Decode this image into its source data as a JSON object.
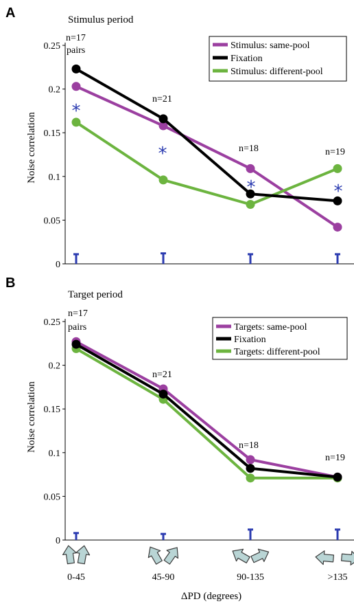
{
  "xlabel": "ΔPD (degrees)",
  "categories": [
    "0-45",
    "45-90",
    "90-135",
    ">135"
  ],
  "colors": {
    "same_pool": "#9b3fa0",
    "fixation": "#000000",
    "different_pool": "#6cb43f",
    "error_bar": "#2b3bb0",
    "arrow_fill": "#b9d5d5",
    "arrow_stroke": "#3a3a3a"
  },
  "panels": [
    {
      "letter": "A",
      "title": "Stimulus period",
      "ylabel": "Noise correlation",
      "y_ticks": [
        "0",
        "0.05",
        "0.1",
        "0.15",
        "0.2",
        "0.25"
      ],
      "n_labels": [
        "n=17",
        "pairs",
        "n=21",
        "n=18",
        "n=19"
      ],
      "stars": [
        "*",
        "*",
        "*",
        "*"
      ],
      "legend": [
        "Stimulus: same-pool",
        "Fixation",
        "Stimulus: different-pool"
      ]
    },
    {
      "letter": "B",
      "title": "Target period",
      "ylabel": "Noise correlation",
      "y_ticks": [
        "0",
        "0.05",
        "0.1",
        "0.15",
        "0.2",
        "0.25"
      ],
      "n_labels": [
        "n=17",
        "pairs",
        "n=21",
        "n=18",
        "n=19"
      ],
      "stars": [],
      "legend": [
        "Targets: same-pool",
        "Fixation",
        "Targets: different-pool"
      ]
    }
  ],
  "chart_data": [
    {
      "type": "line",
      "title": "Stimulus period",
      "xlabel": "ΔPD (degrees)",
      "ylabel": "Noise correlation",
      "categories": [
        "0-45",
        "45-90",
        "90-135",
        ">135"
      ],
      "ylim": [
        0,
        0.25
      ],
      "y_ticks": [
        0,
        0.05,
        0.1,
        0.15,
        0.2,
        0.25
      ],
      "legend_position": "top-right",
      "series": [
        {
          "name": "Stimulus: same-pool",
          "values": [
            0.203,
            0.158,
            0.109,
            0.042
          ]
        },
        {
          "name": "Fixation",
          "values": [
            0.223,
            0.166,
            0.08,
            0.072
          ]
        },
        {
          "name": "Stimulus: different-pool",
          "values": [
            0.162,
            0.096,
            0.068,
            0.109
          ]
        }
      ],
      "error_bars": [
        0.011,
        0.012,
        0.011,
        0.011
      ],
      "significance": [
        true,
        true,
        true,
        true
      ],
      "n": [
        "n=17 pairs",
        "n=21",
        "n=18",
        "n=19"
      ]
    },
    {
      "type": "line",
      "title": "Target period",
      "xlabel": "ΔPD (degrees)",
      "ylabel": "Noise correlation",
      "categories": [
        "0-45",
        "45-90",
        "90-135",
        ">135"
      ],
      "ylim": [
        0,
        0.25
      ],
      "y_ticks": [
        0,
        0.05,
        0.1,
        0.15,
        0.2,
        0.25
      ],
      "legend_position": "top-right",
      "series": [
        {
          "name": "Targets: same-pool",
          "values": [
            0.227,
            0.173,
            0.092,
            0.072
          ]
        },
        {
          "name": "Fixation",
          "values": [
            0.224,
            0.167,
            0.082,
            0.072
          ]
        },
        {
          "name": "Targets: different-pool",
          "values": [
            0.219,
            0.161,
            0.071,
            0.071
          ]
        }
      ],
      "error_bars": [
        0.008,
        0.007,
        0.012,
        0.012
      ],
      "n": [
        "n=17 pairs",
        "n=21",
        "n=18",
        "n=19"
      ]
    }
  ]
}
